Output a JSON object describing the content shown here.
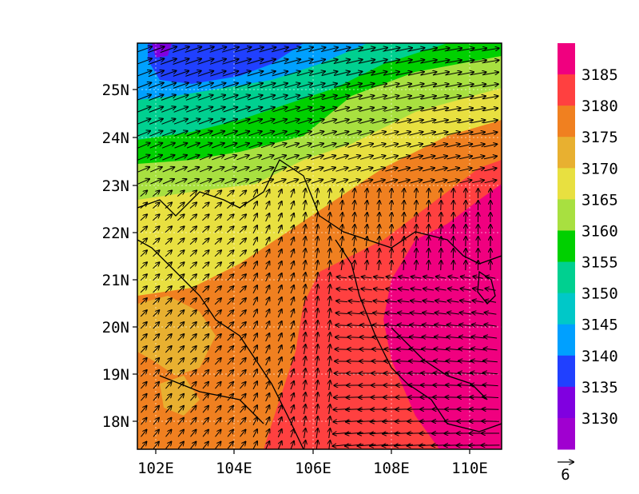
{
  "map": {
    "lat_labels": [
      "25N",
      "24N",
      "23N",
      "22N",
      "21N",
      "20N",
      "19N",
      "18N"
    ],
    "lon_labels": [
      "102E",
      "104E",
      "106E",
      "108E",
      "110E"
    ],
    "lat_range": [
      17.4,
      26.0
    ],
    "lon_range": [
      101.6,
      110.8
    ],
    "grid_lines": "dotted"
  },
  "colorbar": {
    "labels": [
      "3185",
      "3180",
      "3175",
      "3170",
      "3165",
      "3160",
      "3155",
      "3150",
      "3145",
      "3140",
      "3135",
      "3130"
    ],
    "colors": [
      "#f0007f",
      "#ff4040",
      "#f08020",
      "#e8b030",
      "#e8e040",
      "#a8e040",
      "#00d000",
      "#00d090",
      "#00c8c8",
      "#00a0ff",
      "#2040ff",
      "#8000e0",
      "#a000d0"
    ]
  },
  "vector_ref": {
    "label": "6"
  }
}
